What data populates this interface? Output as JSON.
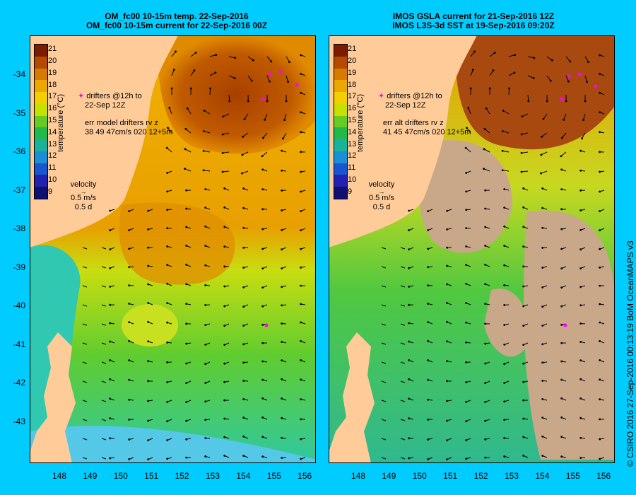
{
  "left": {
    "title_line1": "OM_fc00 10-15m temp. 22-Sep-2016",
    "title_line2": "OM_fc00 10-15m current for 22-Sep-2016 00Z",
    "drifters_line1": "drifters @12h to",
    "drifters_line2": "22-Sep 12Z",
    "err_line1": "err model drifters rv z",
    "err_line2": "38 49 47cm/s 020 12+5m"
  },
  "right": {
    "title_line1": "IMOS GSLA current for 21-Sep-2016 12Z",
    "title_line2": "IMOS L3S-3d SST at 19-Sep-2016 09:20Z",
    "drifters_line1": "drifters @12h to",
    "drifters_line2": "22-Sep 12Z",
    "err_line1": "err alt drifters rv z",
    "err_line2": "41 45 47cm/s 020 12+5m"
  },
  "colorbar": {
    "label": "temperature (°C)",
    "ticks": [
      "21",
      "20",
      "19",
      "18",
      "17",
      "16",
      "15",
      "14",
      "13",
      "12",
      "11",
      "10",
      "9"
    ],
    "colors": [
      "#7a1c00",
      "#b24a00",
      "#d67a00",
      "#eba800",
      "#f2cf00",
      "#c8e000",
      "#66cc22",
      "#22b84a",
      "#18b39a",
      "#1a8fd6",
      "#1a55d0",
      "#2222b0",
      "#101070"
    ]
  },
  "velocity": {
    "label": "velocity",
    "speed": "0.5 m/s",
    "time": "0.5 d"
  },
  "axes": {
    "y_ticks": [
      "-34",
      "-35",
      "-36",
      "-37",
      "-38",
      "-39",
      "-40",
      "-41",
      "-42",
      "-43"
    ],
    "x_ticks": [
      "148",
      "149",
      "150",
      "151",
      "152",
      "153",
      "154",
      "155",
      "156"
    ]
  },
  "credit": "© CSIRO 2016  27-Sep-2016 00:13:19 BoM OceanMAPS v3",
  "colors": {
    "background": "#00ccff",
    "land": "#ffcc99",
    "drifter": "#ff00ff"
  }
}
